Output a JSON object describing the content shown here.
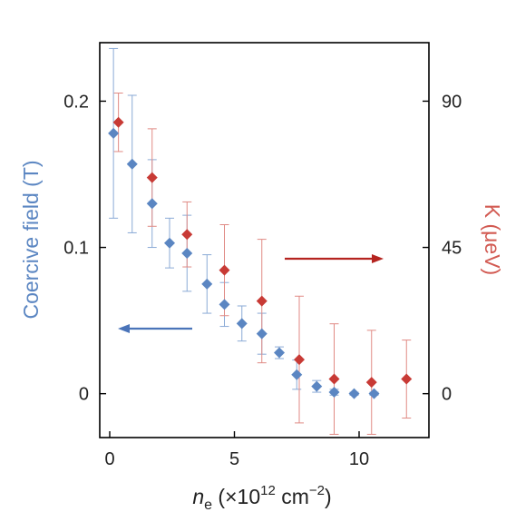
{
  "chart_data": {
    "type": "scatter",
    "xlabel": {
      "symbol": "n",
      "subscript": "e",
      "text": " (×10",
      "superscript_1": "12",
      "unit": " cm",
      "superscript_2": "−2",
      "close": ")"
    },
    "ylabel_left": "Coercive field (T)",
    "ylabel_right": "K (μeV)",
    "xlim": [
      -0.4,
      12.8
    ],
    "ylim_left": [
      -0.03,
      0.24
    ],
    "ylim_right": [
      -13.5,
      108
    ],
    "xticks": [
      {
        "value": 0,
        "label": "0"
      },
      {
        "value": 5,
        "label": "5"
      },
      {
        "value": 10,
        "label": "10"
      }
    ],
    "yticks_left": [
      {
        "value": 0,
        "label": "0"
      },
      {
        "value": 0.1,
        "label": "0.1"
      },
      {
        "value": 0.2,
        "label": "0.2"
      }
    ],
    "yticks_right": [
      {
        "value": 0,
        "label": "0"
      },
      {
        "value": 45,
        "label": "45"
      },
      {
        "value": 90,
        "label": "90"
      }
    ],
    "series": [
      {
        "axis": "left",
        "color": "#5b86c2",
        "points": [
          {
            "x": 0.15,
            "y": 0.178,
            "err": 0.058
          },
          {
            "x": 0.9,
            "y": 0.157,
            "err": 0.047
          },
          {
            "x": 1.7,
            "y": 0.13,
            "err": 0.03
          },
          {
            "x": 2.4,
            "y": 0.103,
            "err": 0.017
          },
          {
            "x": 3.1,
            "y": 0.096,
            "err": 0.026
          },
          {
            "x": 3.9,
            "y": 0.075,
            "err": 0.02
          },
          {
            "x": 4.6,
            "y": 0.061,
            "err": 0.015
          },
          {
            "x": 5.3,
            "y": 0.048,
            "err": 0.012
          },
          {
            "x": 6.1,
            "y": 0.041,
            "err": 0.014
          },
          {
            "x": 6.8,
            "y": 0.028,
            "err": 0.004
          },
          {
            "x": 7.5,
            "y": 0.013,
            "err": 0.01
          },
          {
            "x": 8.3,
            "y": 0.005,
            "err": 0.004
          },
          {
            "x": 9.0,
            "y": 0.001,
            "err": 0.002
          },
          {
            "x": 9.8,
            "y": 0.0,
            "err": 0.001
          },
          {
            "x": 10.6,
            "y": 0.0,
            "err": 0.001
          }
        ]
      },
      {
        "axis": "right",
        "color": "#c83a35",
        "points": [
          {
            "x": 0.35,
            "y": 83.5,
            "err": 9.0
          },
          {
            "x": 1.7,
            "y": 66.5,
            "err": 15.0
          },
          {
            "x": 3.1,
            "y": 49.0,
            "err": 10.0
          },
          {
            "x": 4.6,
            "y": 38.0,
            "err": 14.0
          },
          {
            "x": 6.1,
            "y": 28.5,
            "err": 19.0
          },
          {
            "x": 7.6,
            "y": 10.5,
            "err": 19.5
          },
          {
            "x": 9.0,
            "y": 4.5,
            "err": 17.0
          },
          {
            "x": 10.5,
            "y": 3.5,
            "err": 16.0
          },
          {
            "x": 11.9,
            "y": 4.5,
            "err": 12.0
          }
        ]
      }
    ],
    "annotations": [
      {
        "type": "arrow",
        "direction": "left",
        "color": "#4a74b9"
      },
      {
        "type": "arrow",
        "direction": "right",
        "color": "#b52420"
      }
    ],
    "grid": false,
    "legend": "none"
  }
}
